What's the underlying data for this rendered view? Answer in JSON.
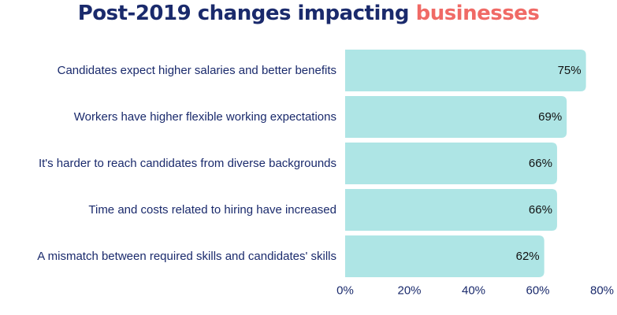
{
  "title": {
    "main": "Post-2019 changes impacting",
    "accent": "businesses"
  },
  "colors": {
    "bar": "#aee5e5",
    "title": "#1a2a6c",
    "accent": "#f06a66",
    "label": "#1a2a6c",
    "value": "#111111"
  },
  "chart_data": {
    "type": "bar",
    "orientation": "horizontal",
    "title": "Post-2019 changes impacting businesses",
    "categories": [
      "Candidates expect higher salaries and better benefits",
      "Workers have higher flexible working expectations",
      "It's harder to reach candidates from diverse backgrounds",
      "Time and costs related to hiring have increased",
      "A mismatch between required skills and candidates' skills"
    ],
    "values": [
      75,
      69,
      66,
      66,
      62
    ],
    "value_labels": [
      "75%",
      "69%",
      "66%",
      "66%",
      "62%"
    ],
    "xlim": [
      0,
      80
    ],
    "xticks": [
      0,
      20,
      40,
      60,
      80
    ],
    "xtick_labels": [
      "0%",
      "20%",
      "40%",
      "60%",
      "80%"
    ],
    "xlabel": "",
    "ylabel": "",
    "grid": false,
    "legend": "none"
  }
}
